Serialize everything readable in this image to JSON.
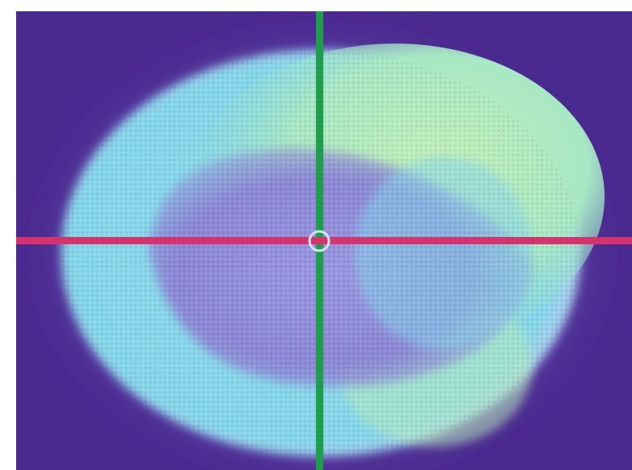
{
  "image": {
    "kind": "false-color beam intensity profile",
    "palette": {
      "background": "#4b2a8f",
      "halo": "#8a7fd6",
      "outer_ring": "#7fd6e6",
      "mid_ring": "#8fe0d0",
      "hot_zone": "#b8ecb4",
      "inner_core": "#8b86d8",
      "core_speckle": "#a0a8e6"
    },
    "crosshair": {
      "vertical_color": "#1e9e4a",
      "horizontal_color": "#d6336e",
      "center_marker_color": "#cfe6f2"
    }
  }
}
